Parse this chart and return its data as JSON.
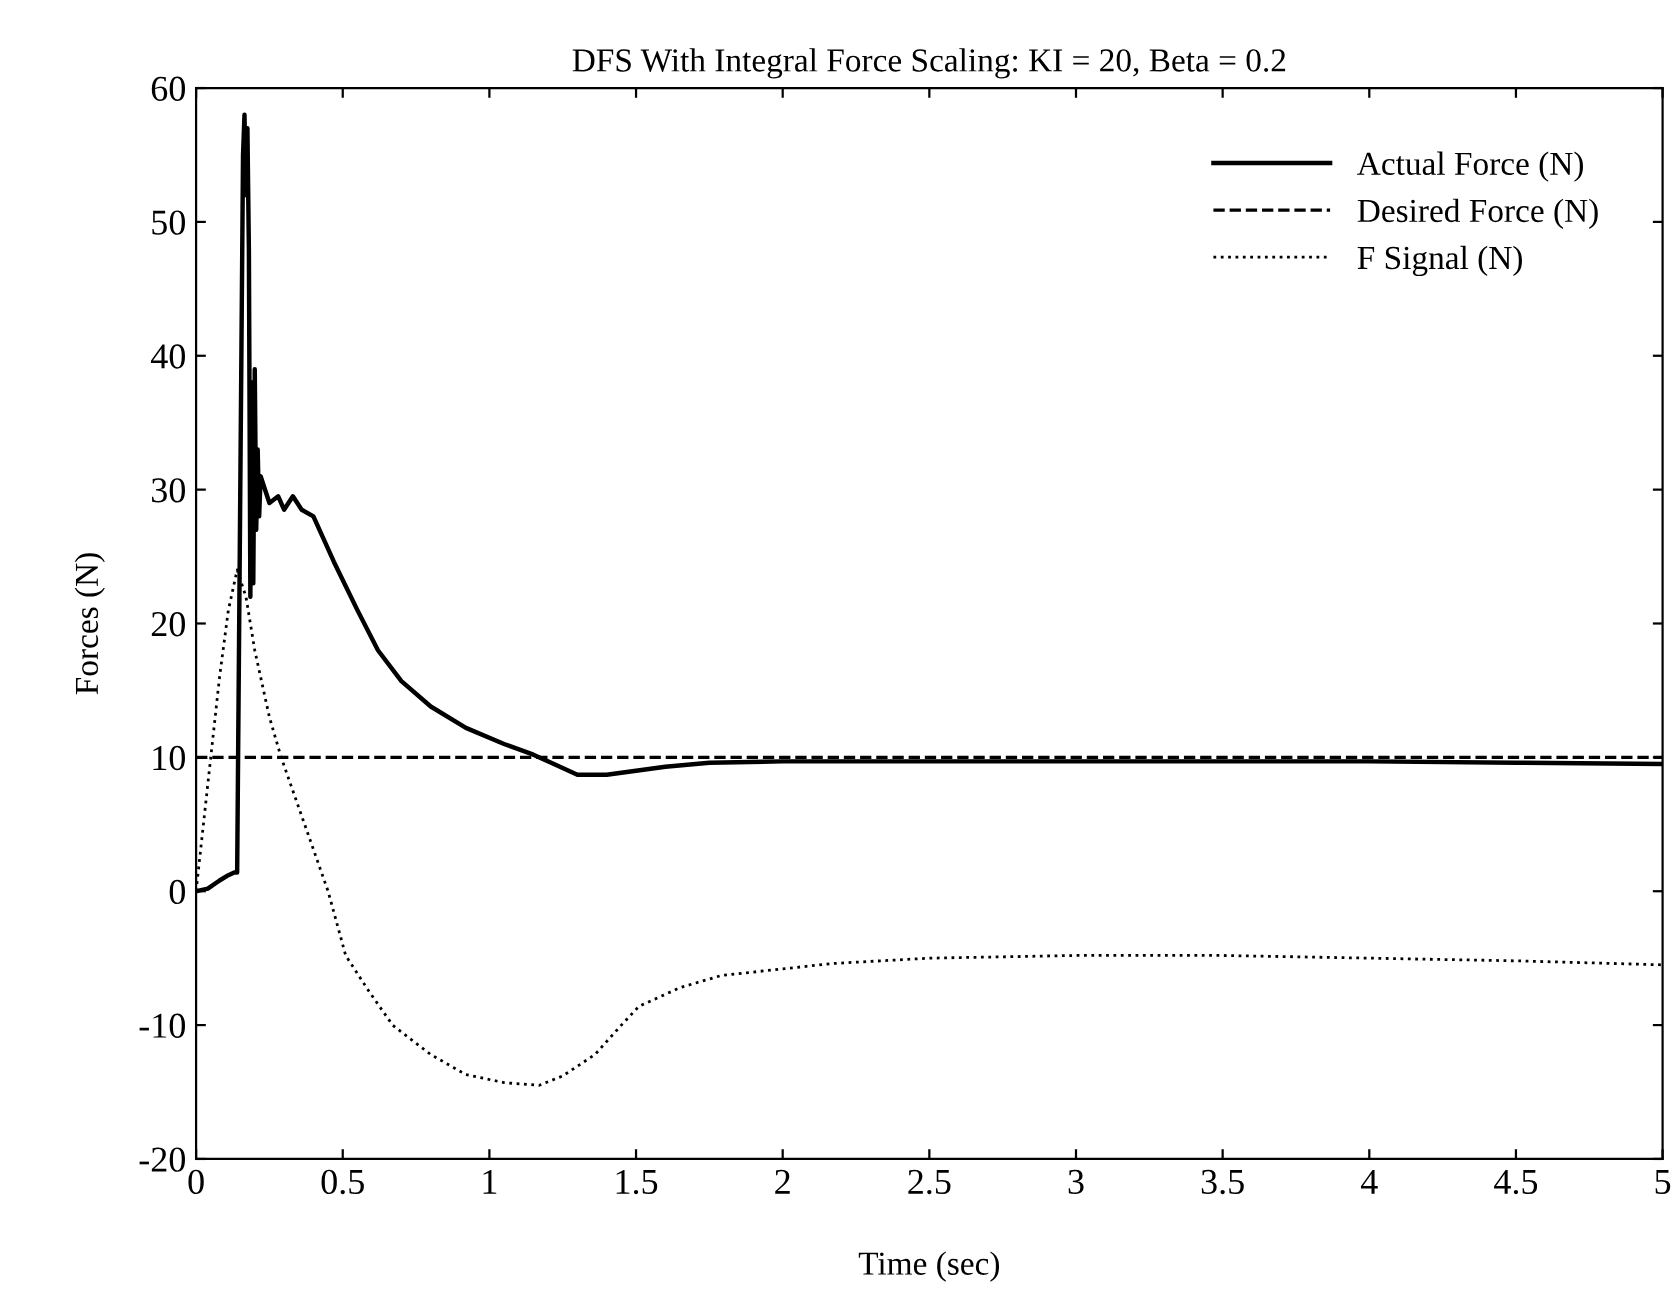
{
  "chart_data": {
    "type": "line",
    "title": "DFS With Integral Force Scaling: KI = 20, Beta = 0.2",
    "xlabel": "Time (sec)",
    "ylabel": "Forces (N)",
    "xlim": [
      0,
      5
    ],
    "ylim": [
      -20,
      60
    ],
    "xticks": [
      0,
      0.5,
      1,
      1.5,
      2,
      2.5,
      3,
      3.5,
      4,
      4.5,
      5
    ],
    "yticks": [
      -20,
      -10,
      0,
      10,
      20,
      30,
      40,
      50,
      60
    ],
    "grid": false,
    "legend": "top right",
    "series": [
      {
        "name": "Actual Force (N)",
        "color": "#000000",
        "line_style": "solid",
        "x": [
          0,
          0.04,
          0.08,
          0.11,
          0.13,
          0.14,
          0.16,
          0.165,
          0.17,
          0.175,
          0.18,
          0.185,
          0.19,
          0.195,
          0.2,
          0.205,
          0.21,
          0.215,
          0.22,
          0.25,
          0.28,
          0.3,
          0.33,
          0.36,
          0.4,
          0.47,
          0.55,
          0.62,
          0.7,
          0.8,
          0.92,
          1.05,
          1.15,
          1.22,
          1.3,
          1.4,
          1.5,
          1.6,
          1.75,
          2.0,
          2.5,
          3.0,
          3.5,
          4.0,
          4.5,
          5.0
        ],
        "values": [
          0,
          0.2,
          0.8,
          1.2,
          1.4,
          1.4,
          55,
          58,
          52,
          57,
          48,
          22,
          38,
          23,
          39,
          27,
          33,
          28,
          31,
          29,
          29.5,
          28.5,
          29.5,
          28.5,
          28,
          24.6,
          21,
          18,
          15.7,
          13.8,
          12.2,
          11,
          10.2,
          9.5,
          8.7,
          8.7,
          9,
          9.3,
          9.6,
          9.7,
          9.7,
          9.7,
          9.7,
          9.7,
          9.6,
          9.5
        ]
      },
      {
        "name": "Desired Force (N)",
        "color": "#000000",
        "line_style": "dashed",
        "x": [
          0,
          5
        ],
        "values": [
          10,
          10
        ]
      },
      {
        "name": "F Signal (N)",
        "color": "#000000",
        "line_style": "dotted",
        "x": [
          0,
          0.02,
          0.05,
          0.08,
          0.11,
          0.14,
          0.17,
          0.2,
          0.25,
          0.29,
          0.37,
          0.45,
          0.51,
          0.59,
          0.67,
          0.8,
          0.92,
          1.05,
          1.17,
          1.25,
          1.36,
          1.45,
          1.51,
          1.65,
          1.79,
          2.0,
          2.17,
          2.5,
          3.0,
          3.5,
          4.0,
          4.5,
          5.0
        ],
        "values": [
          0,
          4,
          10,
          16,
          21,
          24,
          22,
          18,
          13,
          10,
          5,
          0,
          -4.8,
          -7.5,
          -10,
          -12.2,
          -13.7,
          -14.3,
          -14.5,
          -13.8,
          -12.2,
          -10,
          -8.6,
          -7.2,
          -6.3,
          -5.8,
          -5.4,
          -5,
          -4.8,
          -4.8,
          -5,
          -5.2,
          -5.5
        ]
      }
    ]
  }
}
